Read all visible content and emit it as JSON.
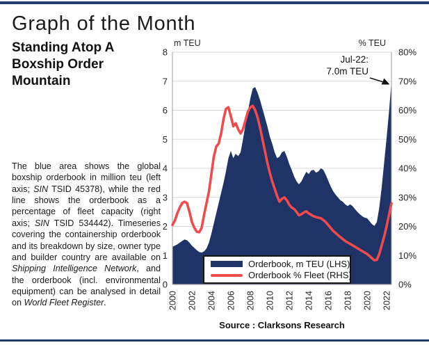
{
  "page": {
    "title": "Graph of the Month",
    "subtitle": "Standing Atop A Boxship Order Mountain"
  },
  "description": {
    "runs": [
      {
        "text": "The blue area shows the global boxship orderbook in million teu (left axis; ",
        "italic": false
      },
      {
        "text": "SIN",
        "italic": true
      },
      {
        "text": " TSID 45378), while the red line shows the orderbook as a percentage of fleet capacity (right axis; ",
        "italic": false
      },
      {
        "text": "SIN",
        "italic": true
      },
      {
        "text": " TSID 534442). Timeseries covering the containership orderbook and its breakdown by size, owner type and builder country are available on ",
        "italic": false
      },
      {
        "text": "Shipping Intelligence Network",
        "italic": true
      },
      {
        "text": ", and the orderbook (incl. environmental equipment) can be analysed in detail on ",
        "italic": false
      },
      {
        "text": "World Fleet Register",
        "italic": true
      },
      {
        "text": ".",
        "italic": false
      }
    ]
  },
  "chart_data": {
    "type": "area+line combo",
    "x": [
      2000,
      2000.25,
      2000.5,
      2000.75,
      2001,
      2001.25,
      2001.5,
      2001.75,
      2002,
      2002.25,
      2002.5,
      2002.75,
      2003,
      2003.25,
      2003.5,
      2003.75,
      2004,
      2004.25,
      2004.5,
      2004.75,
      2005,
      2005.25,
      2005.5,
      2005.75,
      2006,
      2006.25,
      2006.5,
      2006.75,
      2007,
      2007.25,
      2007.5,
      2007.75,
      2008,
      2008.25,
      2008.5,
      2008.75,
      2009,
      2009.25,
      2009.5,
      2009.75,
      2010,
      2010.25,
      2010.5,
      2010.75,
      2011,
      2011.25,
      2011.5,
      2011.75,
      2012,
      2012.25,
      2012.5,
      2012.75,
      2013,
      2013.25,
      2013.5,
      2013.75,
      2014,
      2014.25,
      2014.5,
      2014.75,
      2015,
      2015.25,
      2015.5,
      2015.75,
      2016,
      2016.25,
      2016.5,
      2016.75,
      2017,
      2017.25,
      2017.5,
      2017.75,
      2018,
      2018.25,
      2018.5,
      2018.75,
      2019,
      2019.25,
      2019.5,
      2019.75,
      2020,
      2020.25,
      2020.5,
      2020.75,
      2021,
      2021.25,
      2021.5,
      2021.75,
      2022,
      2022.25,
      2022.5
    ],
    "series": [
      {
        "name": "Orderbook, m TEU (LHS)",
        "type": "area",
        "axis": "left",
        "color": "#1F3366",
        "values": [
          1.3,
          1.34,
          1.38,
          1.44,
          1.5,
          1.55,
          1.52,
          1.44,
          1.34,
          1.26,
          1.18,
          1.12,
          1.1,
          1.14,
          1.24,
          1.44,
          1.75,
          2.1,
          2.45,
          2.8,
          3.15,
          3.5,
          3.9,
          4.35,
          4.6,
          4.35,
          4.5,
          4.42,
          4.55,
          5.0,
          5.5,
          5.95,
          6.4,
          6.75,
          6.8,
          6.6,
          6.35,
          6.05,
          5.75,
          5.45,
          5.1,
          4.85,
          4.55,
          4.35,
          4.4,
          4.55,
          4.6,
          4.4,
          4.15,
          3.95,
          3.72,
          3.55,
          3.45,
          3.55,
          3.72,
          3.88,
          3.8,
          3.92,
          3.95,
          3.85,
          3.9,
          4.0,
          3.95,
          3.78,
          3.58,
          3.38,
          3.22,
          3.1,
          3.0,
          2.9,
          2.85,
          2.76,
          2.7,
          2.76,
          2.7,
          2.6,
          2.5,
          2.42,
          2.35,
          2.3,
          2.28,
          2.18,
          2.08,
          2.02,
          2.15,
          2.65,
          3.35,
          4.2,
          5.05,
          5.95,
          7.0
        ]
      },
      {
        "name": "Orderbook % Fleet (RHS)",
        "type": "line",
        "axis": "right",
        "color": "#F04A4D",
        "values": [
          20.5,
          22.0,
          24.5,
          26.5,
          28.0,
          28.5,
          28.0,
          25.0,
          21.5,
          19.5,
          18.2,
          18.0,
          19.5,
          24.0,
          28.0,
          32.0,
          38.0,
          44.0,
          47.5,
          48.5,
          52.0,
          57.0,
          60.5,
          61.0,
          58.0,
          54.5,
          55.5,
          53.5,
          52.0,
          53.5,
          56.5,
          59.5,
          61.0,
          61.5,
          60.0,
          57.5,
          54.0,
          50.0,
          46.0,
          42.0,
          38.5,
          35.5,
          33.0,
          30.5,
          28.5,
          29.5,
          30.0,
          29.0,
          27.5,
          26.5,
          26.0,
          25.0,
          23.8,
          24.2,
          24.8,
          25.2,
          24.5,
          24.0,
          23.5,
          23.2,
          23.0,
          22.8,
          22.2,
          21.5,
          20.5,
          19.5,
          18.5,
          17.8,
          17.0,
          16.3,
          15.6,
          15.0,
          14.5,
          14.0,
          13.5,
          13.0,
          12.5,
          12.0,
          11.5,
          11.0,
          10.5,
          9.8,
          9.0,
          8.3,
          8.5,
          10.5,
          13.5,
          16.5,
          20.0,
          24.0,
          27.9
        ]
      }
    ],
    "left_axis": {
      "title": "m TEU",
      "min": 0,
      "max": 8,
      "ticks": [
        0,
        1,
        2,
        3,
        4,
        5,
        6,
        7,
        8
      ]
    },
    "right_axis": {
      "title": "% TEU",
      "min": 0,
      "max": 80,
      "ticks": [
        0,
        10,
        20,
        30,
        40,
        50,
        60,
        70,
        80
      ],
      "suffix": "%"
    },
    "x_axis": {
      "min": 2000,
      "max": 2022.5,
      "ticks": [
        2000,
        2002,
        2004,
        2006,
        2008,
        2010,
        2012,
        2014,
        2016,
        2018,
        2020,
        2022
      ]
    },
    "annotation": {
      "line1": "Jul-22:",
      "line2": "7.0m TEU"
    },
    "legend": [
      {
        "label": "Orderbook, m TEU (LHS)",
        "type": "area",
        "color": "#1F3366"
      },
      {
        "label": "Orderbook % Fleet (RHS)",
        "type": "line",
        "color": "#F04A4D"
      }
    ],
    "source": "Source : Clarksons Research",
    "grid": true,
    "legend_position": "inside-bottom-center",
    "colors": {
      "grid": "#D9D9D9",
      "axis": "#ADADAD",
      "text": "#262626",
      "rule": "#1E3C6E"
    }
  }
}
